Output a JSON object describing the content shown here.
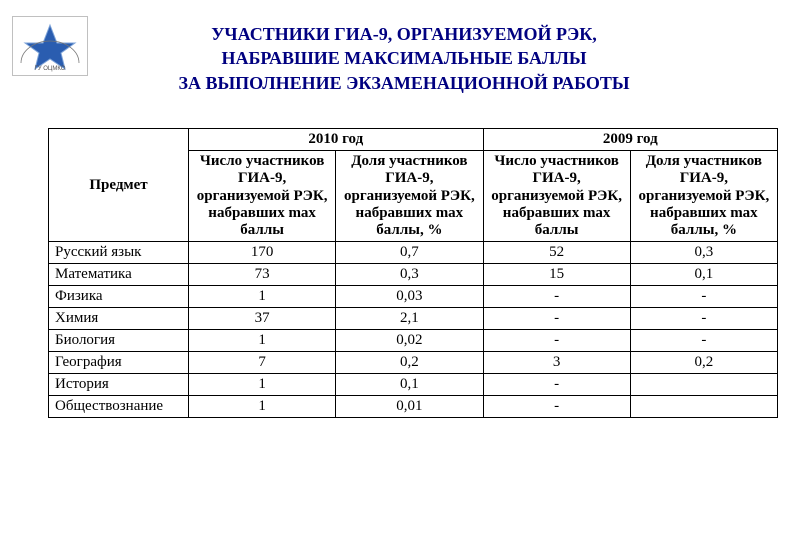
{
  "logo": {
    "alt": "ГУ ОЦМКО"
  },
  "title": {
    "line1": "УЧАСТНИКИ ГИА-9, ОРГАНИЗУЕМОЙ РЭК,",
    "line2": "НАБРАВШИЕ МАКСИМАЛЬНЫЕ БАЛЛЫ",
    "line3": "ЗА ВЫПОЛНЕНИЕ ЭКЗАМЕНАЦИОННОЙ РАБОТЫ"
  },
  "table": {
    "header": {
      "subject": "Предмет",
      "year2010": "2010 год",
      "year2009": "2009 год",
      "count_caption": "Число участников ГИА-9, организуемой РЭК, набравших max баллы",
      "share_caption": "Доля участников ГИА-9, организуемой РЭК, набравших max баллы, %"
    },
    "rows": [
      {
        "subject": "Русский язык",
        "c2010": "170",
        "p2010": "0,7",
        "c2009": "52",
        "p2009": "0,3"
      },
      {
        "subject": "Математика",
        "c2010": "73",
        "p2010": "0,3",
        "c2009": "15",
        "p2009": "0,1"
      },
      {
        "subject": "Физика",
        "c2010": "1",
        "p2010": "0,03",
        "c2009": "-",
        "p2009": "-"
      },
      {
        "subject": "Химия",
        "c2010": "37",
        "p2010": "2,1",
        "c2009": "-",
        "p2009": "-"
      },
      {
        "subject": "Биология",
        "c2010": "1",
        "p2010": "0,02",
        "c2009": "-",
        "p2009": "-"
      },
      {
        "subject": "География",
        "c2010": "7",
        "p2010": "0,2",
        "c2009": "3",
        "p2009": "0,2"
      },
      {
        "subject": "История",
        "c2010": "1",
        "p2010": "0,1",
        "c2009": "-",
        "p2009": ""
      },
      {
        "subject": "Обществознание",
        "c2010": "1",
        "p2010": "0,01",
        "c2009": "-",
        "p2009": ""
      }
    ]
  },
  "colors": {
    "title": "#000080",
    "border": "#000000",
    "text": "#000000",
    "logo_border": "#c0c0c0",
    "logo_star": "#2a5db0"
  }
}
